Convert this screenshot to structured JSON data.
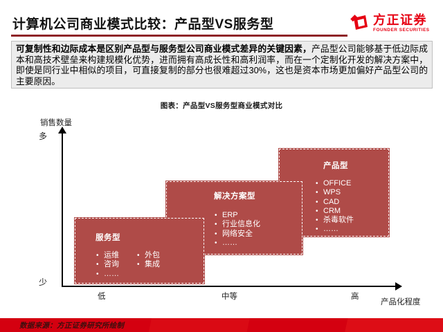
{
  "colors": {
    "brand_red": "#E60012",
    "title_underline_red": "#8E2227",
    "diagram_box_red": "#AF4B48",
    "footer_bar_red": "#D40010",
    "summary_bg_gray": "#ECECEC"
  },
  "header": {
    "title": "计算机公司商业模式比较：产品型VS服务型",
    "logo_cn": "方正证券",
    "logo_en": "FOUNDER SECURITIES"
  },
  "summary": {
    "lead_bold": "可复制性和边际成本是区别产品型与服务型公司商业模式差异的关键因素，",
    "body": "产品型公司能够基于低边际成本和高技术壁垒来构建规模化优势，进而拥有高成长性和高利润率，而在一个定制化开发的解决方案中，即使是同行业中相似的项目，可直接复制的部分也很难超过30%，这也是资本市场更加偏好产品型公司的主要原因。"
  },
  "figure": {
    "caption_label": "图表：",
    "caption_text": "产品型VS服务型商业模式对比",
    "y_axis": {
      "title": "销售数量",
      "max_label": "多",
      "min_label": "少"
    },
    "x_axis": {
      "title": "产品化程度",
      "ticks": [
        "低",
        "中等",
        "高"
      ]
    },
    "boxes": [
      {
        "title": "服务型",
        "items_col1": [
          "运维",
          "咨询",
          "……"
        ],
        "items_col2": [
          "外包",
          "集成"
        ]
      },
      {
        "title": "解决方案型",
        "items": [
          "ERP",
          "行业信息化",
          "网络安全",
          "……"
        ]
      },
      {
        "title": "产品型",
        "items": [
          "OFFICE",
          "WPS",
          "CAD",
          "CRM",
          "杀毒软件",
          "……"
        ]
      }
    ]
  },
  "footer": {
    "source": "数据来源：方正证券研究所绘制"
  }
}
